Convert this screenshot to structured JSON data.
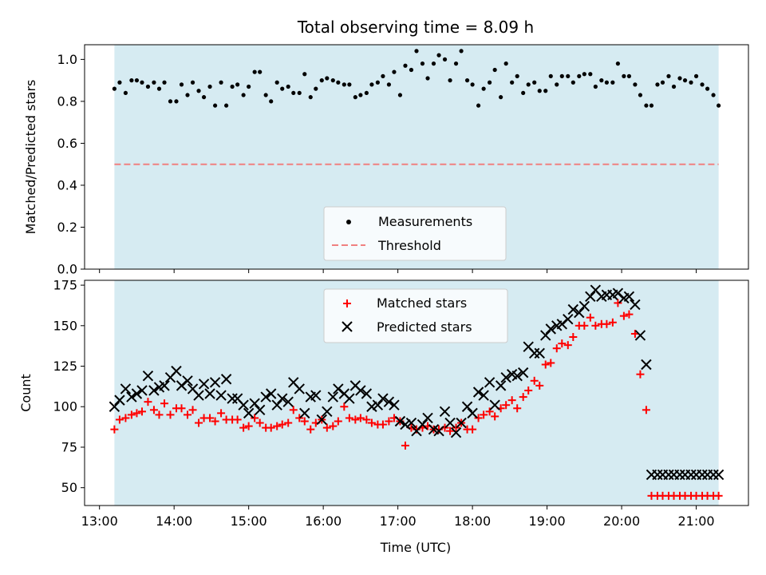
{
  "title": "Total observing time = 8.09 h",
  "colors": {
    "shade": "#add8e6",
    "threshold": "#f08080",
    "matched": "#ff0000",
    "predicted": "#000000",
    "measurement": "#000000"
  },
  "chart_data": [
    {
      "type": "scatter",
      "panel": "top",
      "ylabel": "Matched/Predicted stars",
      "xlim": [
        12.8,
        21.7
      ],
      "ylim": [
        0.0,
        1.07
      ],
      "yticks": [
        0.0,
        0.2,
        0.4,
        0.6,
        0.8,
        1.0
      ],
      "ytick_labels": [
        "0.0",
        "0.2",
        "0.4",
        "0.6",
        "0.8",
        "1.0"
      ],
      "shaded_span": [
        13.2,
        21.3
      ],
      "threshold": 0.5,
      "legend_position": "lower center",
      "legend": [
        "Measurements",
        "Threshold"
      ],
      "series": [
        {
          "name": "Measurements",
          "marker": "dot",
          "x": [
            13.2,
            13.27,
            13.35,
            13.43,
            13.5,
            13.57,
            13.65,
            13.73,
            13.8,
            13.87,
            13.95,
            14.03,
            14.1,
            14.18,
            14.25,
            14.33,
            14.4,
            14.48,
            14.55,
            14.63,
            14.7,
            14.78,
            14.85,
            14.93,
            15.0,
            15.08,
            15.15,
            15.23,
            15.3,
            15.38,
            15.45,
            15.53,
            15.6,
            15.68,
            15.75,
            15.83,
            15.9,
            15.98,
            16.05,
            16.13,
            16.2,
            16.28,
            16.35,
            16.43,
            16.5,
            16.58,
            16.65,
            16.73,
            16.8,
            16.88,
            16.95,
            17.03,
            17.1,
            17.18,
            17.25,
            17.33,
            17.4,
            17.48,
            17.55,
            17.63,
            17.7,
            17.78,
            17.85,
            17.93,
            18.0,
            18.08,
            18.15,
            18.23,
            18.3,
            18.38,
            18.45,
            18.53,
            18.6,
            18.68,
            18.75,
            18.83,
            18.9,
            18.98,
            19.05,
            19.13,
            19.2,
            19.28,
            19.35,
            19.43,
            19.5,
            19.58,
            19.65,
            19.73,
            19.8,
            19.88,
            19.95,
            20.03,
            20.1,
            20.18,
            20.25,
            20.33,
            20.4,
            20.48,
            20.55,
            20.63,
            20.7,
            20.78,
            20.85,
            20.93,
            21.0,
            21.08,
            21.15,
            21.23,
            21.3
          ],
          "y": [
            0.86,
            0.89,
            0.84,
            0.9,
            0.9,
            0.89,
            0.87,
            0.89,
            0.86,
            0.89,
            0.8,
            0.8,
            0.88,
            0.83,
            0.89,
            0.85,
            0.82,
            0.87,
            0.78,
            0.89,
            0.78,
            0.87,
            0.88,
            0.83,
            0.87,
            0.94,
            0.94,
            0.83,
            0.8,
            0.89,
            0.86,
            0.87,
            0.84,
            0.84,
            0.93,
            0.82,
            0.86,
            0.9,
            0.91,
            0.9,
            0.89,
            0.88,
            0.88,
            0.82,
            0.83,
            0.84,
            0.88,
            0.89,
            0.92,
            0.88,
            0.94,
            0.83,
            0.97,
            0.95,
            1.04,
            0.98,
            0.91,
            0.98,
            1.02,
            1.0,
            0.9,
            0.98,
            1.04,
            0.9,
            0.88,
            0.78,
            0.86,
            0.89,
            0.95,
            0.82,
            0.98,
            0.89,
            0.92,
            0.84,
            0.88,
            0.89,
            0.85,
            0.85,
            0.92,
            0.88,
            0.92,
            0.92,
            0.89,
            0.92,
            0.93,
            0.93,
            0.87,
            0.9,
            0.89,
            0.89,
            0.98,
            0.92,
            0.92,
            0.88,
            0.83,
            0.78,
            0.78,
            0.88,
            0.89,
            0.92,
            0.87,
            0.91,
            0.9,
            0.89,
            0.92,
            0.88,
            0.86,
            0.83,
            0.78
          ]
        },
        {
          "name": "Threshold",
          "marker": "dashed-line",
          "x": [
            13.2,
            21.3
          ],
          "y": [
            0.5,
            0.5
          ]
        }
      ]
    },
    {
      "type": "scatter",
      "panel": "bottom",
      "xlabel": "Time (UTC)",
      "ylabel": "Count",
      "xlim": [
        12.8,
        21.7
      ],
      "ylim": [
        39,
        178
      ],
      "xticks": [
        13,
        14,
        15,
        16,
        17,
        18,
        19,
        20,
        21
      ],
      "xtick_labels": [
        "13:00",
        "14:00",
        "15:00",
        "16:00",
        "17:00",
        "18:00",
        "19:00",
        "20:00",
        "21:00"
      ],
      "yticks": [
        50,
        75,
        100,
        125,
        150,
        175
      ],
      "ytick_labels": [
        "50",
        "75",
        "100",
        "125",
        "150",
        "175"
      ],
      "shaded_span": [
        13.2,
        21.3
      ],
      "legend_position": "upper center",
      "legend": [
        "Matched stars",
        "Predicted stars"
      ],
      "series": [
        {
          "name": "Matched stars",
          "marker": "plus",
          "x": [
            13.2,
            13.27,
            13.35,
            13.43,
            13.5,
            13.57,
            13.65,
            13.73,
            13.8,
            13.87,
            13.95,
            14.03,
            14.1,
            14.18,
            14.25,
            14.33,
            14.4,
            14.48,
            14.55,
            14.63,
            14.7,
            14.78,
            14.85,
            14.93,
            15.0,
            15.08,
            15.15,
            15.23,
            15.3,
            15.38,
            15.45,
            15.53,
            15.6,
            15.68,
            15.75,
            15.83,
            15.9,
            15.98,
            16.05,
            16.13,
            16.2,
            16.28,
            16.35,
            16.43,
            16.5,
            16.58,
            16.65,
            16.73,
            16.8,
            16.88,
            16.95,
            17.03,
            17.1,
            17.18,
            17.25,
            17.33,
            17.4,
            17.48,
            17.55,
            17.63,
            17.7,
            17.78,
            17.85,
            17.93,
            18.0,
            18.08,
            18.15,
            18.23,
            18.3,
            18.38,
            18.45,
            18.53,
            18.6,
            18.68,
            18.75,
            18.83,
            18.9,
            18.98,
            19.05,
            19.13,
            19.2,
            19.28,
            19.35,
            19.43,
            19.5,
            19.58,
            19.65,
            19.73,
            19.8,
            19.88,
            19.95,
            20.03,
            20.1,
            20.18,
            20.25,
            20.33,
            20.4,
            20.48,
            20.55,
            20.63,
            20.7,
            20.78,
            20.85,
            20.93,
            21.0,
            21.08,
            21.15,
            21.23,
            21.3
          ],
          "y": [
            86,
            92,
            93,
            95,
            96,
            97,
            103,
            98,
            95,
            102,
            95,
            99,
            99,
            95,
            98,
            90,
            93,
            93,
            91,
            96,
            92,
            92,
            92,
            87,
            88,
            93,
            90,
            87,
            87,
            88,
            89,
            90,
            98,
            93,
            91,
            86,
            90,
            92,
            87,
            88,
            91,
            100,
            93,
            92,
            93,
            92,
            90,
            89,
            89,
            91,
            93,
            91,
            76,
            87,
            86,
            87,
            88,
            86,
            86,
            87,
            85,
            87,
            90,
            86,
            86,
            93,
            95,
            97,
            94,
            99,
            101,
            104,
            99,
            106,
            110,
            116,
            113,
            126,
            127,
            136,
            139,
            138,
            143,
            150,
            150,
            155,
            150,
            151,
            151,
            152,
            164,
            156,
            157,
            145,
            120,
            98,
            45,
            45,
            45,
            45,
            45,
            45,
            45,
            45,
            45,
            45,
            45,
            45,
            45
          ]
        },
        {
          "name": "Predicted stars",
          "marker": "x",
          "x": [
            13.2,
            13.27,
            13.35,
            13.43,
            13.5,
            13.57,
            13.65,
            13.73,
            13.8,
            13.87,
            13.95,
            14.03,
            14.1,
            14.18,
            14.25,
            14.33,
            14.4,
            14.48,
            14.55,
            14.63,
            14.7,
            14.78,
            14.85,
            14.93,
            15.0,
            15.08,
            15.15,
            15.23,
            15.3,
            15.38,
            15.45,
            15.53,
            15.6,
            15.68,
            15.75,
            15.83,
            15.9,
            15.98,
            16.05,
            16.13,
            16.2,
            16.28,
            16.35,
            16.43,
            16.5,
            16.58,
            16.65,
            16.73,
            16.8,
            16.88,
            16.95,
            17.03,
            17.1,
            17.18,
            17.25,
            17.33,
            17.4,
            17.48,
            17.55,
            17.63,
            17.7,
            17.78,
            17.85,
            17.93,
            18.0,
            18.08,
            18.15,
            18.23,
            18.3,
            18.38,
            18.45,
            18.53,
            18.6,
            18.68,
            18.75,
            18.83,
            18.9,
            18.98,
            19.05,
            19.13,
            19.2,
            19.28,
            19.35,
            19.43,
            19.5,
            19.58,
            19.65,
            19.73,
            19.8,
            19.88,
            19.95,
            20.03,
            20.1,
            20.18,
            20.25,
            20.33,
            20.4,
            20.48,
            20.55,
            20.63,
            20.7,
            20.78,
            20.85,
            20.93,
            21.0,
            21.08,
            21.15,
            21.23,
            21.3
          ],
          "y": [
            100,
            104,
            111,
            106,
            108,
            110,
            119,
            110,
            112,
            113,
            118,
            122,
            113,
            116,
            111,
            107,
            114,
            108,
            115,
            107,
            117,
            105,
            105,
            101,
            96,
            102,
            98,
            106,
            108,
            101,
            105,
            103,
            115,
            111,
            96,
            106,
            107,
            92,
            97,
            106,
            111,
            108,
            105,
            113,
            110,
            108,
            100,
            101,
            105,
            103,
            101,
            91,
            89,
            90,
            85,
            89,
            93,
            86,
            85,
            97,
            90,
            84,
            90,
            100,
            96,
            109,
            107,
            115,
            101,
            113,
            118,
            120,
            119,
            121,
            137,
            133,
            133,
            144,
            148,
            150,
            151,
            154,
            160,
            158,
            162,
            168,
            172,
            168,
            169,
            169,
            170,
            167,
            168,
            163,
            144,
            126,
            58,
            58,
            58,
            58,
            58,
            58,
            58,
            58,
            58,
            58,
            58,
            58,
            58
          ]
        }
      ]
    }
  ]
}
